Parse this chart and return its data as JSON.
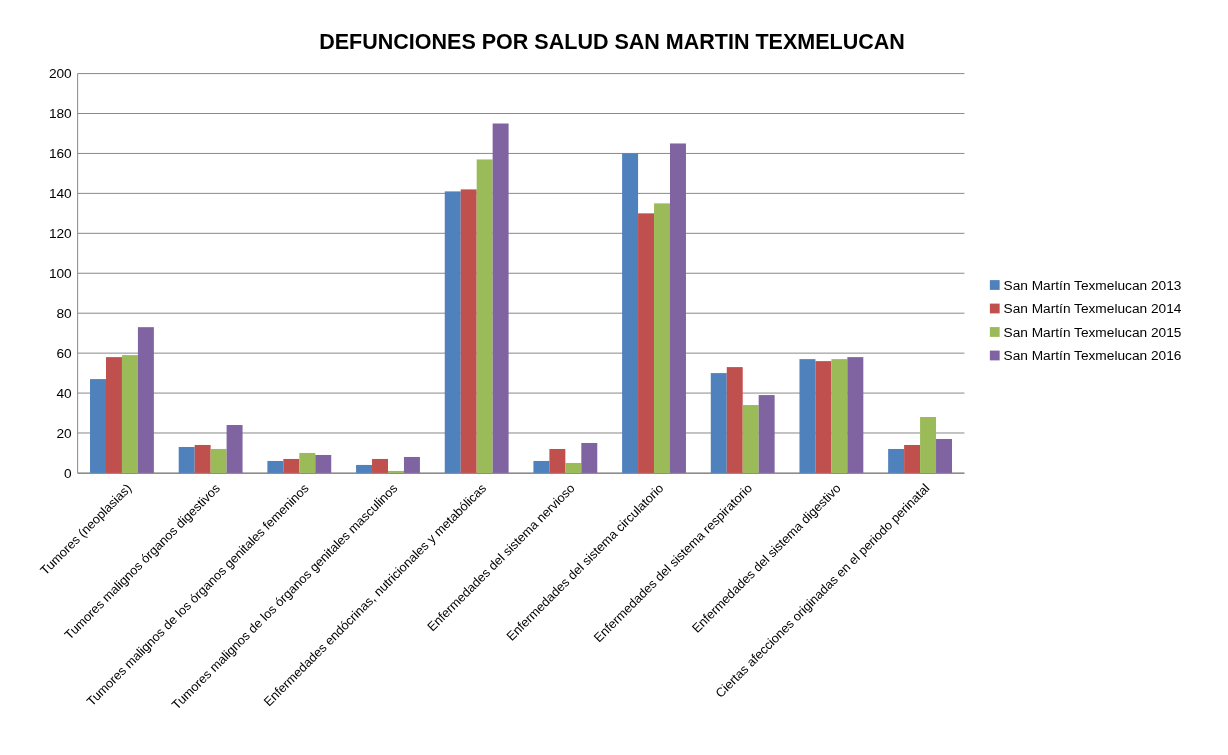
{
  "chart_data": {
    "type": "bar",
    "title": "DEFUNCIONES POR SALUD SAN MARTIN TEXMELUCAN",
    "categories": [
      "Tumores (neoplasias)",
      "Tumores malignos órganos digestivos",
      "Tumores malignos de los órganos genitales femeninos",
      "Tumores malignos de los órganos genitales masculinos",
      "Enfermedades endócrinas, nutricionales y metabólicas",
      "Enfermedades del sistema nervioso",
      "Enfermedades del sistema circulatorio",
      "Enfermedades del sistema respiratorio",
      "Enfermedades del sistema digestivo",
      "Ciertas afecciones originadas en el periodo perinatal"
    ],
    "series": [
      {
        "name": "San Martín Texmelucan 2013",
        "color": "#4f81bd",
        "values": [
          47,
          13,
          6,
          4,
          141,
          6,
          160,
          50,
          57,
          12
        ]
      },
      {
        "name": "San Martín Texmelucan 2014",
        "color": "#c0504d",
        "values": [
          58,
          14,
          7,
          7,
          142,
          12,
          130,
          53,
          56,
          14
        ]
      },
      {
        "name": "San Martín Texmelucan 2015",
        "color": "#9bbb59",
        "values": [
          59,
          12,
          10,
          1,
          157,
          5,
          135,
          34,
          57,
          28
        ]
      },
      {
        "name": "San Martín Texmelucan 2016",
        "color": "#8064a2",
        "values": [
          73,
          24,
          9,
          8,
          175,
          15,
          165,
          39,
          58,
          17
        ]
      }
    ],
    "ylim": [
      0,
      200
    ],
    "yticks": [
      0,
      20,
      40,
      60,
      80,
      100,
      120,
      140,
      160,
      180,
      200
    ],
    "grid": "y",
    "legend": "right"
  }
}
